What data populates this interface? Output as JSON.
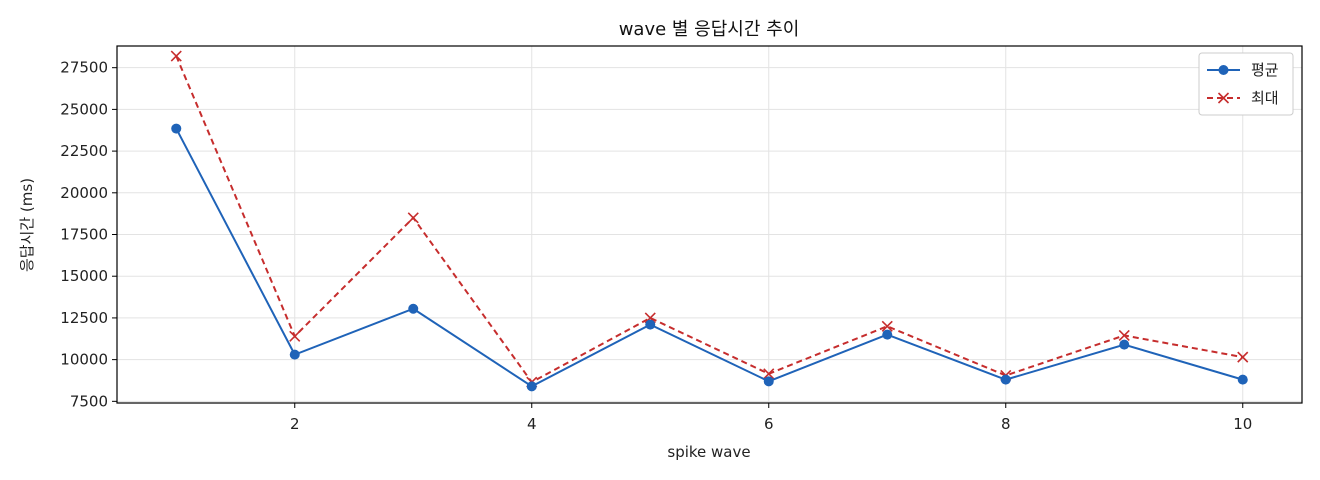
{
  "chart_data": {
    "type": "line",
    "title": "wave 별 응답시간 추이",
    "xlabel": "spike wave",
    "ylabel": "응답시간 (ms)",
    "x": [
      1,
      2,
      3,
      4,
      5,
      6,
      7,
      8,
      9,
      10
    ],
    "xlim": [
      0.5,
      10.5
    ],
    "ylim": [
      7400,
      28800
    ],
    "xticks": [
      2,
      4,
      6,
      8,
      10
    ],
    "yticks": [
      7500,
      10000,
      12500,
      15000,
      17500,
      20000,
      22500,
      25000,
      27500
    ],
    "grid": true,
    "legend_position": "top-right",
    "series": [
      {
        "name": "평균",
        "color": "#1f63b8",
        "marker": "circle",
        "line_style": "solid",
        "values": [
          23850,
          10300,
          13050,
          8400,
          12100,
          8700,
          11500,
          8800,
          10900,
          8800
        ]
      },
      {
        "name": "최대",
        "color": "#c62d2d",
        "marker": "x",
        "line_style": "dashed",
        "values": [
          28200,
          11400,
          18500,
          8650,
          12500,
          9150,
          12000,
          9050,
          11450,
          10150
        ]
      }
    ]
  }
}
